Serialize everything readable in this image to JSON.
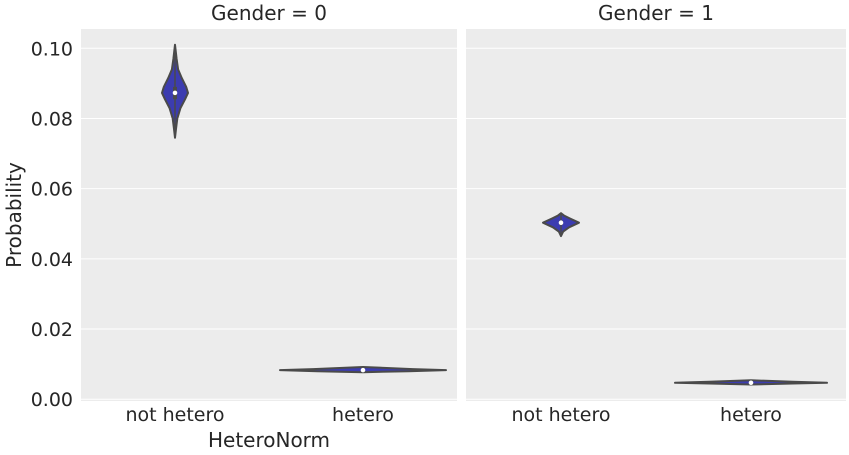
{
  "chart_data": {
    "type": "violin",
    "xlabel": "HeteroNorm",
    "ylabel": "Probability",
    "categories": [
      "not hetero",
      "hetero"
    ],
    "ylim": [
      -0.0005,
      0.1055
    ],
    "yticks": [
      "0.00",
      "0.02",
      "0.04",
      "0.06",
      "0.08",
      "0.10"
    ],
    "ytick_values": [
      0.0,
      0.02,
      0.04,
      0.06,
      0.08,
      0.1
    ],
    "grid": true,
    "colors": {
      "violin_fill": "#3c3cb0",
      "violin_edge": "#4a4a4a",
      "panel_bg": "#ececec",
      "grid": "#ffffff"
    },
    "panels": [
      {
        "title": "Gender = 0",
        "violins": [
          {
            "category": "not hetero",
            "median": 0.0873,
            "min": 0.0745,
            "max": 0.101,
            "q1": 0.0855,
            "q3": 0.089,
            "profile": [
              [
                0.0745,
                0.0
              ],
              [
                0.077,
                0.08
              ],
              [
                0.08,
                0.18
              ],
              [
                0.083,
                0.42
              ],
              [
                0.0855,
                0.78
              ],
              [
                0.0873,
                1.0
              ],
              [
                0.089,
                0.86
              ],
              [
                0.0915,
                0.52
              ],
              [
                0.094,
                0.24
              ],
              [
                0.097,
                0.12
              ],
              [
                0.099,
                0.06
              ],
              [
                0.101,
                0.0
              ]
            ]
          },
          {
            "category": "hetero",
            "median": 0.0083,
            "min": 0.0077,
            "max": 0.0092,
            "q1": 0.0081,
            "q3": 0.0085,
            "profile": [
              [
                0.0077,
                0.0
              ],
              [
                0.008,
                0.55
              ],
              [
                0.0083,
                1.0
              ],
              [
                0.0086,
                0.6
              ],
              [
                0.0092,
                0.0
              ]
            ]
          }
        ]
      },
      {
        "title": "Gender = 1",
        "violins": [
          {
            "category": "not hetero",
            "median": 0.0503,
            "min": 0.0465,
            "max": 0.053,
            "q1": 0.0497,
            "q3": 0.0509,
            "profile": [
              [
                0.0465,
                0.0
              ],
              [
                0.0478,
                0.12
              ],
              [
                0.049,
                0.45
              ],
              [
                0.0503,
                1.0
              ],
              [
                0.0515,
                0.5
              ],
              [
                0.0523,
                0.18
              ],
              [
                0.053,
                0.0
              ]
            ]
          },
          {
            "category": "hetero",
            "median": 0.0047,
            "min": 0.0042,
            "max": 0.0054,
            "q1": 0.0046,
            "q3": 0.0049,
            "profile": [
              [
                0.0042,
                0.0
              ],
              [
                0.0045,
                0.55
              ],
              [
                0.0047,
                1.0
              ],
              [
                0.005,
                0.55
              ],
              [
                0.0054,
                0.0
              ]
            ]
          }
        ]
      }
    ]
  }
}
